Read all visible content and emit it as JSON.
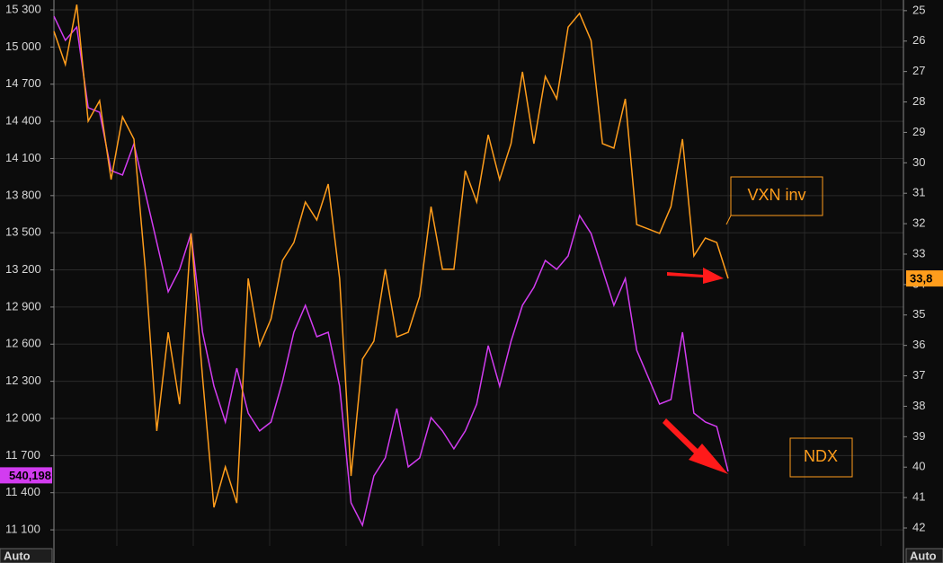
{
  "chart_data": {
    "type": "line",
    "categories": [
      null,
      null,
      null,
      null,
      null,
      null,
      null,
      null,
      null,
      null,
      null,
      null,
      null,
      null,
      null,
      null,
      null,
      null,
      null,
      null,
      null,
      null,
      null,
      null,
      null,
      null,
      null,
      null,
      null,
      null,
      null,
      null,
      null,
      null,
      null,
      null,
      null,
      null,
      null,
      null,
      null,
      null,
      null,
      null,
      null,
      null,
      null,
      null,
      null,
      null,
      null,
      null,
      null,
      null,
      null,
      null,
      null,
      null,
      null,
      null
    ],
    "series": [
      {
        "name": "NDX",
        "color": "#d23cf0",
        "axis": "y",
        "values": [
          15249,
          15054,
          15162,
          14510,
          14473,
          14002,
          13966,
          14219,
          13821,
          13422,
          13023,
          13204,
          13494,
          12696,
          12261,
          11971,
          12406,
          12043,
          11899,
          11971,
          12297,
          12696,
          12914,
          12660,
          12696,
          12261,
          11318,
          11137,
          11536,
          11681,
          12080,
          11608,
          11681,
          12007,
          11899,
          11754,
          11899,
          12116,
          12588,
          12261,
          12624,
          12914,
          13059,
          13276,
          13204,
          13313,
          13639,
          13494,
          13204,
          12914,
          13131,
          12551,
          12334,
          12116,
          12152,
          12696,
          12043,
          11971,
          11935,
          11572
        ]
      },
      {
        "name": "VXN inv",
        "color": "#ff9d1c",
        "axis": "y2",
        "values": [
          25.68,
          26.77,
          24.8,
          28.63,
          27.96,
          30.55,
          28.49,
          29.22,
          33.5,
          38.81,
          35.57,
          37.93,
          32.32,
          37.04,
          41.32,
          39.99,
          41.18,
          33.8,
          36.01,
          35.13,
          33.21,
          32.62,
          31.29,
          31.88,
          30.7,
          33.8,
          40.29,
          36.45,
          35.86,
          33.5,
          35.72,
          35.57,
          34.39,
          31.44,
          33.5,
          33.5,
          30.26,
          31.29,
          29.08,
          30.55,
          29.37,
          27.01,
          29.37,
          27.16,
          27.9,
          25.54,
          25.09,
          25.98,
          29.37,
          29.52,
          27.9,
          32.03,
          32.17,
          32.32,
          31.44,
          29.22,
          33.06,
          32.47,
          32.62,
          33.8
        ]
      }
    ],
    "ylim": [
      10970,
      15380
    ],
    "yticks": [
      {
        "value": 11100,
        "label": "11 100"
      },
      {
        "value": 11400,
        "label": "11 400"
      },
      {
        "value": 11700,
        "label": "11 700"
      },
      {
        "value": 12000,
        "label": "12 000"
      },
      {
        "value": 12300,
        "label": "12 300"
      },
      {
        "value": 12600,
        "label": "12 600"
      },
      {
        "value": 12900,
        "label": "12 900"
      },
      {
        "value": 13200,
        "label": "13 200"
      },
      {
        "value": 13500,
        "label": "13 500"
      },
      {
        "value": 13800,
        "label": "13 800"
      },
      {
        "value": 14100,
        "label": "14 100"
      },
      {
        "value": 14400,
        "label": "14 400"
      },
      {
        "value": 14700,
        "label": "14 700"
      },
      {
        "value": 15000,
        "label": "15 000"
      },
      {
        "value": 15300,
        "label": "15 300"
      }
    ],
    "y2lim": [
      24.65,
      42.59
    ],
    "y2_inverted": true,
    "y2ticks": [
      25,
      26,
      27,
      28,
      29,
      30,
      31,
      32,
      33,
      34,
      35,
      36,
      37,
      38,
      39,
      40,
      41,
      42
    ],
    "grid": true,
    "axis_tags": [
      {
        "label": "540,198",
        "value": 11540.198,
        "axis": "y"
      },
      {
        "label": "33,8",
        "value": 33.8,
        "axis": "y2"
      }
    ],
    "scale_labels": [
      "Auto",
      "Auto"
    ]
  }
}
